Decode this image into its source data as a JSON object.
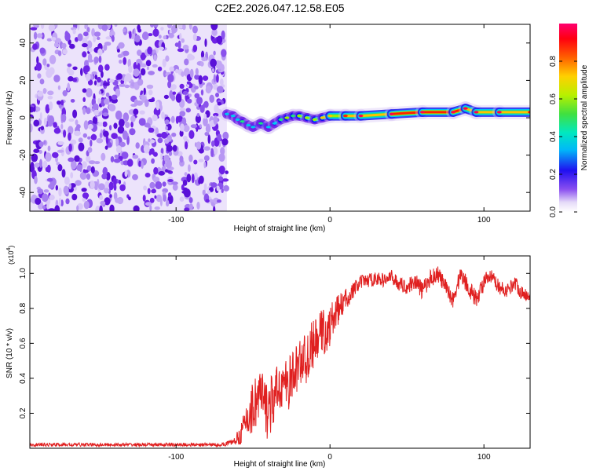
{
  "title": "C2E2.2026.047.12.58.E05",
  "colors": {
    "snr_line": "#e02020",
    "spec_bg": "#ffffff",
    "noise_dark": "#6a1ee8",
    "noise_light": "#d8c4f7"
  },
  "chart_data": [
    {
      "type": "heatmap",
      "name": "spectrogram",
      "xlabel": "Height of straight line (km)",
      "ylabel": "Frequency (Hz)",
      "xlim": [
        -195,
        130
      ],
      "ylim": [
        -50,
        50
      ],
      "xticks": [
        -100,
        0,
        100
      ],
      "xtick_labels": [
        "-100",
        "0",
        "100"
      ],
      "yticks": [
        -40,
        -20,
        0,
        20,
        40
      ],
      "ytick_labels": [
        "-40",
        "-20",
        "0",
        "20",
        "40"
      ],
      "noise_region_x": [
        -195,
        -67
      ],
      "ridge": {
        "x": [
          -67,
          -63,
          -60,
          -57,
          -53,
          -50,
          -45,
          -40,
          -36,
          -32,
          -28,
          -24,
          -20,
          -15,
          -10,
          -5,
          0,
          10,
          20,
          40,
          60,
          80,
          88,
          95,
          110,
          130
        ],
        "freq_hz": [
          2,
          1,
          -1,
          -2,
          -4,
          -5,
          -3,
          -5,
          -3,
          -1,
          0,
          1,
          1,
          0,
          -1,
          0,
          1,
          1,
          1,
          2,
          3,
          3,
          5,
          3,
          3,
          3
        ],
        "amplitude": [
          0.45,
          0.5,
          0.5,
          0.55,
          0.5,
          0.45,
          0.55,
          0.5,
          0.5,
          0.6,
          0.65,
          0.6,
          0.7,
          0.65,
          0.7,
          0.75,
          0.8,
          0.85,
          0.9,
          0.95,
          0.98,
          1.0,
          0.95,
          0.9,
          0.9,
          0.85
        ]
      },
      "colorbar": {
        "label": "Normalized spectral amplitude",
        "range": [
          0,
          1
        ],
        "ticks": [
          0.0,
          0.2,
          0.4,
          0.6,
          0.8
        ],
        "tick_labels": [
          "0.0",
          "0.2",
          "0.4",
          "0.6",
          "0.8"
        ]
      }
    },
    {
      "type": "line",
      "name": "snr",
      "xlabel": "Height of straight line (km)",
      "ylabel": "SNR (10 * v/v)",
      "multiplier_label": "(x10",
      "multiplier_exp": "4",
      "multiplier_close": ")",
      "xlim": [
        -195,
        130
      ],
      "ylim": [
        0,
        1.1
      ],
      "xticks": [
        -100,
        0,
        100
      ],
      "xtick_labels": [
        "-100",
        "0",
        "100"
      ],
      "yticks": [
        0.2,
        0.4,
        0.6,
        0.8,
        1.0
      ],
      "ytick_labels": [
        "0.2",
        "0.4",
        "0.6",
        "0.8",
        "1.0"
      ],
      "envelope": {
        "x": [
          -195,
          -70,
          -62,
          -58,
          -55,
          -52,
          -48,
          -45,
          -42,
          -38,
          -35,
          -32,
          -28,
          -25,
          -22,
          -18,
          -15,
          -12,
          -8,
          -5,
          -2,
          0,
          3,
          6,
          10,
          15,
          20,
          25,
          30,
          35,
          40,
          45,
          50,
          55,
          60,
          65,
          70,
          75,
          80,
          85,
          90,
          95,
          100,
          105,
          110,
          115,
          120,
          125,
          130
        ],
        "y": [
          0.02,
          0.02,
          0.04,
          0.08,
          0.14,
          0.2,
          0.28,
          0.3,
          0.22,
          0.25,
          0.3,
          0.38,
          0.35,
          0.4,
          0.45,
          0.52,
          0.5,
          0.58,
          0.62,
          0.68,
          0.64,
          0.7,
          0.76,
          0.8,
          0.85,
          0.9,
          0.95,
          0.96,
          0.97,
          0.96,
          0.98,
          0.94,
          0.92,
          0.96,
          0.9,
          0.97,
          1.0,
          0.92,
          0.85,
          1.0,
          0.92,
          0.85,
          0.95,
          0.98,
          0.92,
          0.9,
          0.95,
          0.88,
          0.88
        ],
        "noise_amplitude": [
          0.01,
          0.01,
          0.02,
          0.06,
          0.1,
          0.14,
          0.18,
          0.18,
          0.18,
          0.17,
          0.16,
          0.16,
          0.15,
          0.15,
          0.15,
          0.14,
          0.14,
          0.14,
          0.13,
          0.13,
          0.12,
          0.12,
          0.1,
          0.08,
          0.06,
          0.05,
          0.04,
          0.04,
          0.04,
          0.04,
          0.04,
          0.04,
          0.04,
          0.05,
          0.05,
          0.05,
          0.05,
          0.05,
          0.05,
          0.05,
          0.05,
          0.05,
          0.05,
          0.04,
          0.04,
          0.04,
          0.04,
          0.04,
          0.04
        ]
      }
    }
  ]
}
